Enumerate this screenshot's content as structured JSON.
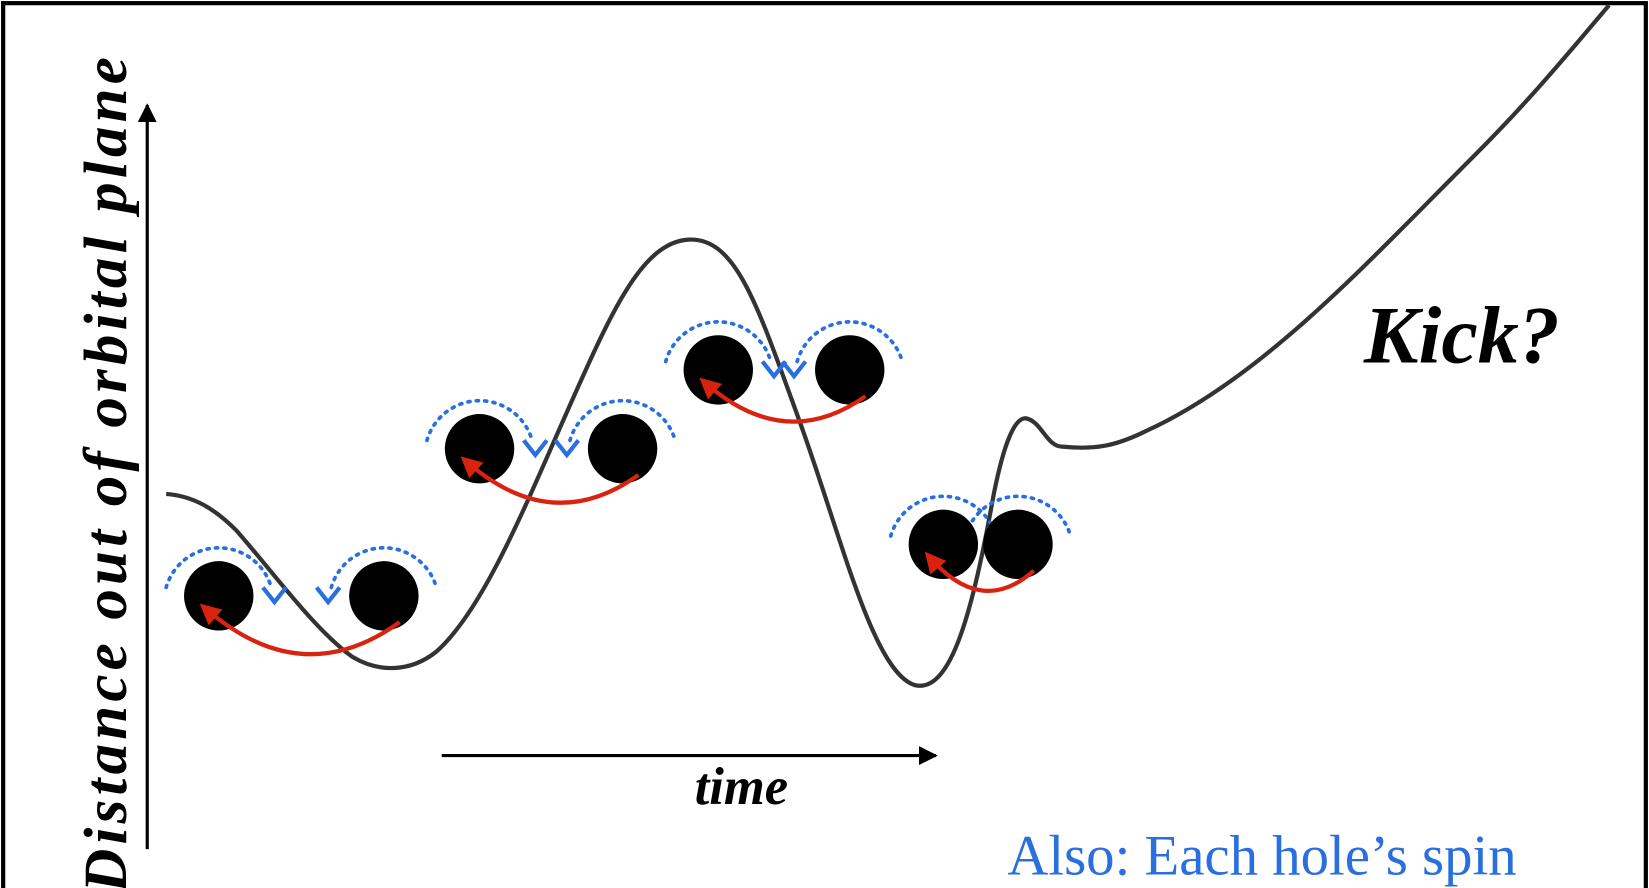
{
  "axes": {
    "y_label": "Distance out of orbital plane",
    "x_label": "time"
  },
  "annotations": {
    "kick": "Kick?",
    "note": "Also: Each hole’s spin"
  }
}
